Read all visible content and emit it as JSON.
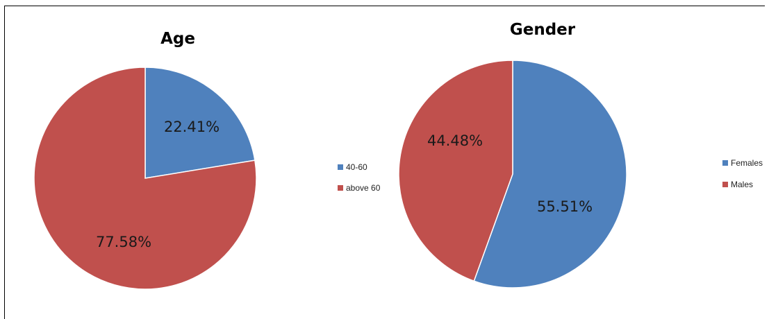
{
  "colors": {
    "blue": "#4f81bd",
    "red": "#c0504d"
  },
  "chart_data": [
    {
      "type": "pie",
      "title": "Age",
      "slices": [
        {
          "label": "40-60",
          "value": 22.41,
          "display": "22.41%",
          "color": "#4f81bd"
        },
        {
          "label": "above 60",
          "value": 77.58,
          "display": "77.58%",
          "color": "#c0504d"
        }
      ],
      "legend": [
        "40-60",
        "above 60"
      ],
      "legend_placement": "right"
    },
    {
      "type": "pie",
      "title": "Gender",
      "slices": [
        {
          "label": "Females",
          "value": 55.51,
          "display": "55.51%",
          "color": "#4f81bd"
        },
        {
          "label": "Males",
          "value": 44.48,
          "display": "44.48%",
          "color": "#c0504d"
        }
      ],
      "legend": [
        "Females",
        "Males"
      ],
      "legend_placement": "right"
    }
  ]
}
